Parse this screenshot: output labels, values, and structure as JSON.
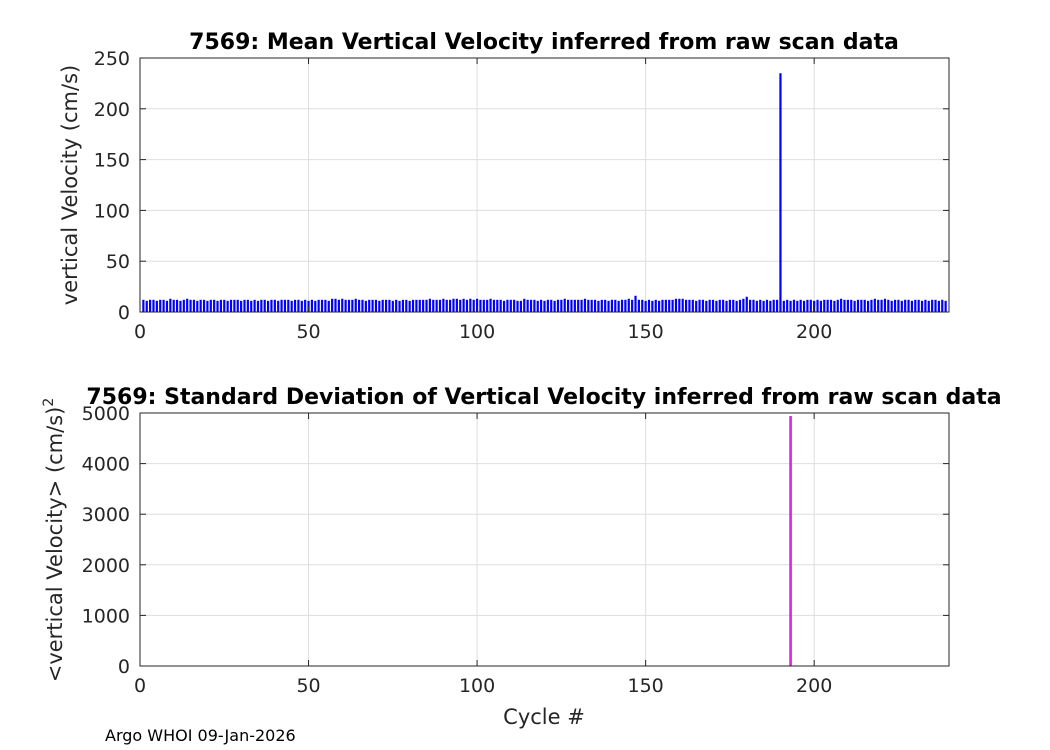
{
  "footer": "Argo WHOI 09-Jan-2026",
  "chart_data": [
    {
      "type": "bar",
      "title": "7569: Mean Vertical Velocity inferred from raw scan data",
      "xlabel": "",
      "ylabel": "vertical Velocity (cm/s)",
      "xlim": [
        0,
        240
      ],
      "ylim": [
        0,
        250
      ],
      "xticks": [
        0,
        50,
        100,
        150,
        200
      ],
      "yticks": [
        0,
        50,
        100,
        150,
        200,
        250
      ],
      "grid": true,
      "color": "#0000ff",
      "x": [
        1,
        2,
        3,
        4,
        5,
        6,
        7,
        8,
        9,
        10,
        11,
        12,
        13,
        14,
        15,
        16,
        17,
        18,
        19,
        20,
        21,
        22,
        23,
        24,
        25,
        26,
        27,
        28,
        29,
        30,
        31,
        32,
        33,
        34,
        35,
        36,
        37,
        38,
        39,
        40,
        41,
        42,
        43,
        44,
        45,
        46,
        47,
        48,
        49,
        50,
        51,
        52,
        53,
        54,
        55,
        56,
        57,
        58,
        59,
        60,
        61,
        62,
        63,
        64,
        65,
        66,
        67,
        68,
        69,
        70,
        71,
        72,
        73,
        74,
        75,
        76,
        77,
        78,
        79,
        80,
        81,
        82,
        83,
        84,
        85,
        86,
        87,
        88,
        89,
        90,
        91,
        92,
        93,
        94,
        95,
        96,
        97,
        98,
        99,
        100,
        101,
        102,
        103,
        104,
        105,
        106,
        107,
        108,
        109,
        110,
        111,
        112,
        113,
        114,
        115,
        116,
        117,
        118,
        119,
        120,
        121,
        122,
        123,
        124,
        125,
        126,
        127,
        128,
        129,
        130,
        131,
        132,
        133,
        134,
        135,
        136,
        137,
        138,
        139,
        140,
        141,
        142,
        143,
        144,
        145,
        146,
        147,
        148,
        149,
        150,
        151,
        152,
        153,
        154,
        155,
        156,
        157,
        158,
        159,
        160,
        161,
        162,
        163,
        164,
        165,
        166,
        167,
        168,
        169,
        170,
        171,
        172,
        173,
        174,
        175,
        176,
        177,
        178,
        179,
        180,
        181,
        182,
        183,
        184,
        185,
        186,
        187,
        188,
        189,
        190,
        191,
        192,
        193,
        194,
        195,
        196,
        197,
        198,
        199,
        200,
        201,
        202,
        203,
        204,
        205,
        206,
        207,
        208,
        209,
        210,
        211,
        212,
        213,
        214,
        215,
        216,
        217,
        218,
        219,
        220,
        221,
        222,
        223,
        224,
        225,
        226,
        227,
        228,
        229,
        230,
        231,
        232,
        233,
        234,
        235,
        236,
        237,
        238,
        239
      ],
      "values": [
        12,
        11,
        12,
        12,
        11,
        12,
        12,
        11,
        13,
        12,
        12,
        11,
        12,
        13,
        12,
        12,
        11,
        12,
        12,
        11,
        12,
        12,
        11,
        12,
        12,
        11,
        12,
        12,
        12,
        11,
        12,
        12,
        11,
        12,
        11,
        12,
        12,
        11,
        12,
        12,
        11,
        12,
        12,
        12,
        11,
        12,
        12,
        11,
        12,
        11,
        12,
        11,
        12,
        12,
        12,
        11,
        13,
        13,
        12,
        13,
        12,
        12,
        12,
        13,
        12,
        12,
        11,
        12,
        12,
        12,
        11,
        12,
        12,
        12,
        11,
        12,
        11,
        12,
        12,
        11,
        12,
        12,
        12,
        12,
        12,
        13,
        12,
        12,
        12,
        13,
        12,
        12,
        13,
        13,
        12,
        13,
        12,
        13,
        12,
        13,
        12,
        12,
        12,
        13,
        12,
        12,
        12,
        11,
        12,
        12,
        12,
        11,
        11,
        13,
        12,
        12,
        12,
        11,
        12,
        11,
        12,
        12,
        11,
        12,
        12,
        13,
        12,
        12,
        12,
        12,
        12,
        13,
        12,
        12,
        12,
        11,
        12,
        12,
        11,
        12,
        12,
        11,
        12,
        12,
        13,
        12,
        16,
        12,
        12,
        11,
        12,
        11,
        12,
        11,
        12,
        12,
        12,
        12,
        13,
        13,
        13,
        12,
        12,
        12,
        11,
        12,
        12,
        11,
        12,
        12,
        11,
        12,
        12,
        11,
        12,
        12,
        11,
        12,
        13,
        15,
        12,
        12,
        11,
        12,
        11,
        12,
        11,
        12,
        12,
        235,
        11,
        12,
        11,
        12,
        11,
        12,
        11,
        12,
        12,
        11,
        12,
        11,
        12,
        12,
        12,
        11,
        12,
        13,
        12,
        12,
        12,
        11,
        12,
        12,
        12,
        11,
        12,
        13,
        12,
        12,
        13,
        12,
        11,
        12,
        12,
        11,
        12,
        12,
        11,
        12,
        12,
        11,
        12,
        11,
        12,
        12,
        11,
        12,
        11
      ]
    },
    {
      "type": "bar",
      "title": "7569: Standard Deviation of Vertical Velocity inferred from raw scan data",
      "xlabel": "Cycle #",
      "ylabel": "<vertical Velocity> (cm/s)",
      "ylabel_superscript": "2",
      "xlim": [
        0,
        240
      ],
      "ylim": [
        0,
        5000
      ],
      "xticks": [
        0,
        50,
        100,
        150,
        200
      ],
      "yticks": [
        0,
        1000,
        2000,
        3000,
        4000,
        5000
      ],
      "grid": true,
      "color": "#e020e0",
      "x": [
        193
      ],
      "values": [
        4940
      ]
    }
  ]
}
